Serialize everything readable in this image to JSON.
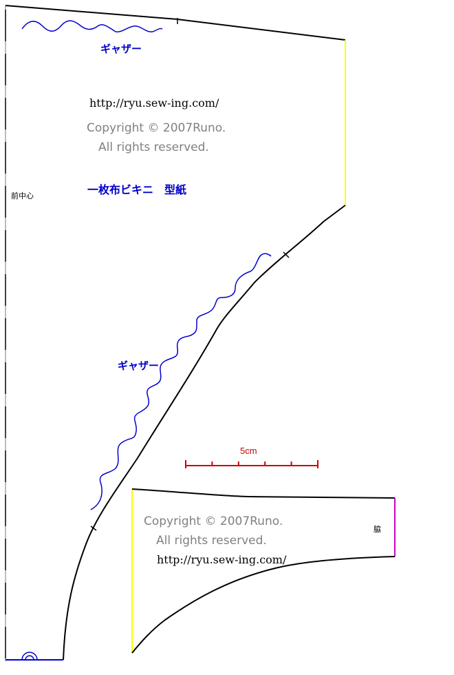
{
  "colors": {
    "outline": "#000000",
    "gather": "#0000cc",
    "grid": "#7a7a7a",
    "copyright": "#808080",
    "scale": "#cc0000",
    "center_line": "#0000cc",
    "side_seam": "#ffff00",
    "side_seam_small": "#cc00cc"
  },
  "front_piece": {
    "gather_label_top": "ギャザー",
    "url": "http://ryu.sew-ing.com/",
    "copyright": "Copyright © 2007Runo.",
    "rights": "All rights reserved.",
    "title": "一枚布ビキニ　型紙",
    "center_front_label": "前中心",
    "gather_label_curve": "ギャザー"
  },
  "scale_bar": {
    "label": "5cm",
    "length_cm": 5,
    "ticks": 5
  },
  "side_piece": {
    "copyright": "Copyright © 2007Runo.",
    "rights": "All rights reserved.",
    "url": "http://ryu.sew-ing.com/",
    "side_label": "脇"
  }
}
